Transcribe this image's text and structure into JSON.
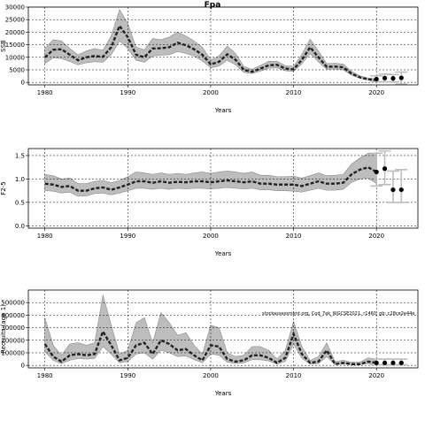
{
  "figure": {
    "title": "Fpa",
    "annotation": "stockassessment.org, Cod_7ek_WGCSE2021, r1460, gb: c28ce2e44e"
  },
  "chart_data": [
    {
      "type": "line",
      "name": "ssb",
      "ylabel": "SSB",
      "xlabel": "Years",
      "xlim": [
        1978,
        2025
      ],
      "ylim": [
        -1000,
        30000
      ],
      "xticks": [
        1980,
        1990,
        2000,
        2010,
        2020
      ],
      "yticks": [
        0,
        5000,
        10000,
        15000,
        20000,
        25000,
        30000
      ],
      "xtick_labels": [
        "1980",
        "1990",
        "2000",
        "2010",
        "2020"
      ],
      "ytick_labels": [
        "0",
        "5000",
        "10000",
        "15000",
        "20000",
        "25000",
        "30000"
      ],
      "grid": true,
      "x": [
        1980,
        1981,
        1982,
        1983,
        1984,
        1985,
        1986,
        1987,
        1988,
        1989,
        1990,
        1991,
        1992,
        1993,
        1994,
        1995,
        1996,
        1997,
        1998,
        1999,
        2000,
        2001,
        2002,
        2003,
        2004,
        2005,
        2006,
        2007,
        2008,
        2009,
        2010,
        2011,
        2012,
        2013,
        2014,
        2015,
        2016,
        2017,
        2018,
        2019,
        2020
      ],
      "y": [
        10000,
        13000,
        13200,
        11000,
        8800,
        10000,
        10500,
        10200,
        14000,
        22500,
        18000,
        11000,
        10000,
        13500,
        13600,
        14000,
        15800,
        14800,
        13200,
        11000,
        7200,
        8200,
        11200,
        9000,
        5000,
        4200,
        5500,
        6800,
        7000,
        5500,
        5200,
        9000,
        14000,
        10000,
        6200,
        6300,
        6000,
        3500,
        2000,
        1200,
        1000
      ],
      "lower": [
        7500,
        9800,
        9500,
        8300,
        7000,
        7800,
        8200,
        8000,
        11000,
        16500,
        13500,
        8800,
        8000,
        10500,
        10800,
        11000,
        12300,
        11500,
        10500,
        8500,
        5800,
        6500,
        8800,
        7000,
        4000,
        3500,
        4500,
        5600,
        5800,
        4600,
        4400,
        7400,
        11500,
        8200,
        5200,
        5300,
        5000,
        2900,
        1600,
        900,
        700
      ],
      "upper": [
        13500,
        17000,
        16500,
        13500,
        11000,
        12500,
        13500,
        12800,
        18500,
        29000,
        23500,
        14000,
        13000,
        17500,
        17000,
        18000,
        20000,
        18500,
        16500,
        14000,
        9000,
        10500,
        14500,
        11500,
        6300,
        5200,
        6800,
        8400,
        8400,
        6700,
        6400,
        11200,
        17200,
        12500,
        7500,
        7600,
        7300,
        4400,
        2600,
        1700,
        1400
      ],
      "forecast_x": [
        2020,
        2021,
        2022,
        2023
      ],
      "forecast_y": [
        1300,
        1700,
        1600,
        1800
      ],
      "forecast_lower": [
        300,
        200,
        200,
        -700
      ],
      "forecast_upper": [
        2600,
        3300,
        3100,
        4100
      ]
    },
    {
      "type": "line",
      "name": "fbar",
      "ylabel": "F2-5",
      "xlabel": "Years",
      "xlim": [
        1978,
        2025
      ],
      "ylim": [
        -0.05,
        1.65
      ],
      "xticks": [
        1980,
        1990,
        2000,
        2010,
        2020
      ],
      "yticks": [
        0,
        0.5,
        1.0,
        1.5
      ],
      "xtick_labels": [
        "1980",
        "1990",
        "2000",
        "2010",
        "2020"
      ],
      "ytick_labels": [
        "0.0",
        "0.5",
        "1.0",
        "1.5"
      ],
      "grid": true,
      "x": [
        1980,
        1981,
        1982,
        1983,
        1984,
        1985,
        1986,
        1987,
        1988,
        1989,
        1990,
        1991,
        1992,
        1993,
        1994,
        1995,
        1996,
        1997,
        1998,
        1999,
        2000,
        2001,
        2002,
        2003,
        2004,
        2005,
        2006,
        2007,
        2008,
        2009,
        2010,
        2011,
        2012,
        2013,
        2014,
        2015,
        2016,
        2017,
        2018,
        2019,
        2020
      ],
      "y": [
        0.9,
        0.88,
        0.83,
        0.85,
        0.75,
        0.75,
        0.8,
        0.82,
        0.77,
        0.82,
        0.88,
        0.95,
        0.95,
        0.92,
        0.95,
        0.92,
        0.94,
        0.93,
        0.95,
        0.95,
        0.93,
        0.95,
        0.97,
        0.95,
        0.93,
        0.95,
        0.9,
        0.9,
        0.88,
        0.88,
        0.88,
        0.85,
        0.9,
        0.95,
        0.9,
        0.9,
        0.92,
        1.1,
        1.2,
        1.25,
        1.15
      ],
      "lower": [
        0.75,
        0.74,
        0.7,
        0.72,
        0.63,
        0.64,
        0.69,
        0.7,
        0.66,
        0.7,
        0.75,
        0.8,
        0.8,
        0.78,
        0.8,
        0.78,
        0.8,
        0.79,
        0.8,
        0.8,
        0.79,
        0.8,
        0.82,
        0.8,
        0.79,
        0.8,
        0.77,
        0.77,
        0.75,
        0.75,
        0.74,
        0.72,
        0.76,
        0.8,
        0.76,
        0.76,
        0.78,
        0.93,
        1.0,
        1.02,
        0.9
      ],
      "upper": [
        1.1,
        1.07,
        1.0,
        1.02,
        0.9,
        0.9,
        0.95,
        0.97,
        0.92,
        0.97,
        1.05,
        1.15,
        1.13,
        1.1,
        1.13,
        1.1,
        1.12,
        1.1,
        1.13,
        1.15,
        1.12,
        1.15,
        1.17,
        1.15,
        1.12,
        1.15,
        1.08,
        1.08,
        1.05,
        1.05,
        1.06,
        1.02,
        1.07,
        1.13,
        1.07,
        1.08,
        1.1,
        1.32,
        1.45,
        1.55,
        1.55
      ],
      "forecast_x": [
        2020,
        2021,
        2022,
        2023
      ],
      "forecast_y": [
        1.15,
        1.22,
        0.77,
        0.77
      ],
      "forecast_lower": [
        0.85,
        0.88,
        0.5,
        0.5
      ],
      "forecast_upper": [
        1.55,
        1.6,
        1.17,
        1.2
      ]
    },
    {
      "type": "line",
      "name": "recruits",
      "ylabel": "Recruits (age 1)",
      "xlabel": "Years",
      "xlim": [
        1978,
        2025
      ],
      "ylim": [
        -20000,
        600000
      ],
      "xticks": [
        1980,
        1990,
        2000,
        2010,
        2020
      ],
      "yticks": [
        0,
        100000,
        200000,
        300000,
        400000,
        500000
      ],
      "xtick_labels": [
        "1980",
        "1990",
        "2000",
        "2010",
        "2020"
      ],
      "ytick_labels": [
        "0",
        "100000",
        "200000",
        "300000",
        "400000",
        "500000"
      ],
      "grid": true,
      "x": [
        1980,
        1981,
        1982,
        1983,
        1984,
        1985,
        1986,
        1987,
        1988,
        1989,
        1990,
        1991,
        1992,
        1993,
        1994,
        1995,
        1996,
        1997,
        1998,
        1999,
        2000,
        2001,
        2002,
        2003,
        2004,
        2005,
        2006,
        2007,
        2008,
        2009,
        2010,
        2011,
        2012,
        2013,
        2014,
        2015,
        2016,
        2017,
        2018,
        2019,
        2020
      ],
      "y": [
        170000,
        70000,
        30000,
        80000,
        90000,
        80000,
        90000,
        270000,
        160000,
        40000,
        60000,
        160000,
        180000,
        90000,
        200000,
        170000,
        120000,
        130000,
        80000,
        40000,
        160000,
        150000,
        50000,
        30000,
        40000,
        80000,
        80000,
        60000,
        20000,
        60000,
        250000,
        90000,
        20000,
        30000,
        120000,
        10000,
        20000,
        10000,
        10000,
        30000,
        20000
      ],
      "lower": [
        110000,
        40000,
        15000,
        40000,
        55000,
        50000,
        55000,
        150000,
        90000,
        20000,
        30000,
        90000,
        100000,
        50000,
        120000,
        100000,
        70000,
        75000,
        45000,
        20000,
        90000,
        80000,
        25000,
        15000,
        20000,
        45000,
        45000,
        35000,
        10000,
        30000,
        170000,
        55000,
        10000,
        15000,
        70000,
        5000,
        10000,
        5000,
        5000,
        15000,
        5000
      ],
      "upper": [
        380000,
        160000,
        80000,
        170000,
        180000,
        160000,
        180000,
        560000,
        320000,
        90000,
        120000,
        340000,
        380000,
        180000,
        420000,
        340000,
        240000,
        260000,
        160000,
        90000,
        320000,
        300000,
        100000,
        70000,
        80000,
        150000,
        150000,
        120000,
        50000,
        120000,
        350000,
        150000,
        40000,
        70000,
        180000,
        30000,
        40000,
        25000,
        25000,
        60000,
        50000
      ],
      "forecast_x": [
        2020,
        2021,
        2022,
        2023
      ],
      "forecast_y": [
        20000,
        20000,
        20000,
        20000
      ],
      "forecast_lower": [
        5000,
        5000,
        5000,
        5000
      ],
      "forecast_upper": [
        50000,
        50000,
        50000,
        50000
      ]
    }
  ]
}
